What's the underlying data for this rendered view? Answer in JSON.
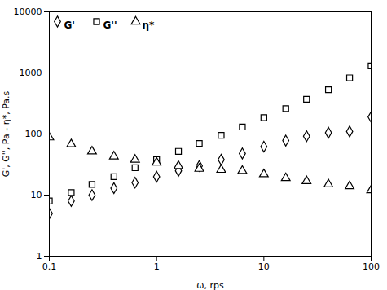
{
  "chart_data": {
    "type": "scatter",
    "xlabel": "ω, rps",
    "ylabel": "G', G'', Pa - η*, Pa.s",
    "log": true,
    "xlim": [
      0.1,
      100
    ],
    "ylim": [
      1,
      10000
    ],
    "xticks": [
      0.1,
      1,
      10,
      100
    ],
    "yticks": [
      1,
      10,
      100,
      1000,
      10000
    ],
    "grid": false,
    "legend": "upper left",
    "series": [
      {
        "name": "G'",
        "color": "black",
        "marker": "diamond",
        "x": [
          0.1,
          0.16,
          0.25,
          0.4,
          0.63,
          1.0,
          1.6,
          2.5,
          4.0,
          6.3,
          10.0,
          16.0,
          25.0,
          40.0,
          63.0,
          100.0
        ],
        "values": [
          5.0,
          8.0,
          10.0,
          13.0,
          16.0,
          20.0,
          25.0,
          30.0,
          38.0,
          48.0,
          62.0,
          78.0,
          92.0,
          105.0,
          110.0,
          190.0
        ]
      },
      {
        "name": "G''",
        "color": "black",
        "marker": "square",
        "x": [
          0.1,
          0.16,
          0.25,
          0.4,
          0.63,
          1.0,
          1.6,
          2.5,
          4.0,
          6.3,
          10.0,
          16.0,
          25.0,
          40.0,
          63.0,
          100.0
        ],
        "values": [
          8.0,
          11.0,
          15.0,
          20.0,
          28.0,
          38.0,
          52.0,
          70.0,
          95.0,
          130.0,
          185.0,
          260.0,
          370.0,
          530.0,
          830.0,
          1300.0
        ]
      },
      {
        "name": "η*",
        "color": "black",
        "marker": "triangle",
        "x": [
          0.1,
          0.16,
          0.25,
          0.4,
          0.63,
          1.0,
          1.6,
          2.5,
          4.0,
          6.3,
          10.0,
          16.0,
          25.0,
          40.0,
          63.0,
          100.0
        ],
        "values": [
          88.0,
          68.0,
          52.0,
          43.0,
          38.0,
          34.0,
          30.0,
          27.0,
          26.0,
          25.0,
          22.0,
          19.0,
          17.0,
          15.0,
          14.0,
          12.0
        ]
      }
    ]
  }
}
